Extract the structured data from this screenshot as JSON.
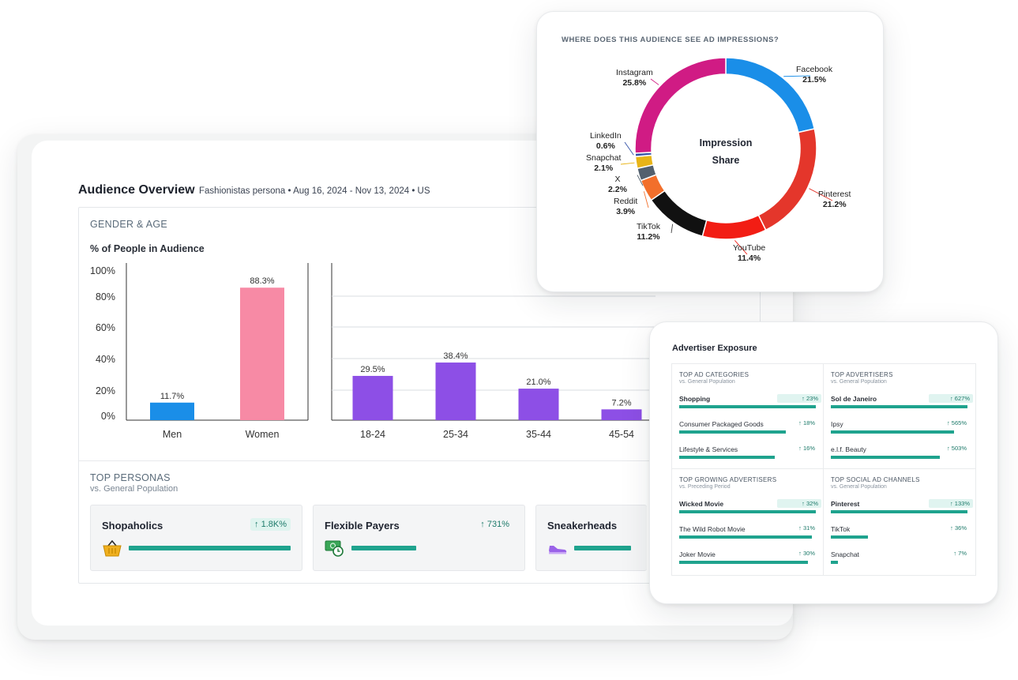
{
  "overview": {
    "title": "Audience Overview",
    "subtitle": "Fashionistas persona • Aug 16, 2024 - Nov 13, 2024 • US",
    "gender_age_title": "GENDER & AGE",
    "chart_label": "% of People in Audience"
  },
  "chart_data": [
    {
      "type": "bar",
      "title": "% of People in Audience",
      "categories": [
        "Men",
        "Women"
      ],
      "values": [
        11.7,
        88.3
      ],
      "value_labels": [
        "11.7%",
        "88.3%"
      ],
      "colors": [
        "#1a8ee8",
        "#f78aa5"
      ],
      "ylim": [
        0,
        100
      ],
      "yticks": [
        "100%",
        "80%",
        "60%",
        "40%",
        "20%",
        "0%"
      ],
      "grid": true
    },
    {
      "type": "bar",
      "categories": [
        "18-24",
        "25-34",
        "35-44",
        "45-54"
      ],
      "values": [
        29.5,
        38.4,
        21.0,
        7.2
      ],
      "value_labels": [
        "29.5%",
        "38.4%",
        "21.0%",
        "7.2%"
      ],
      "colors": [
        "#8d4fe6"
      ],
      "ylim": [
        0,
        100
      ],
      "grid": true
    },
    {
      "type": "pie",
      "title": "WHERE DOES THIS AUDIENCE SEE AD IMPRESSIONS?",
      "center_label": [
        "Impression",
        "Share"
      ],
      "slices": [
        {
          "name": "Facebook",
          "value": 21.5,
          "label": "21.5%",
          "color": "#1a8ee8"
        },
        {
          "name": "Pinterest",
          "value": 21.2,
          "label": "21.2%",
          "color": "#e4362b"
        },
        {
          "name": "YouTube",
          "value": 11.4,
          "label": "11.4%",
          "color": "#f21d14"
        },
        {
          "name": "TikTok",
          "value": 11.2,
          "label": "11.2%",
          "color": "#111111"
        },
        {
          "name": "Reddit",
          "value": 3.9,
          "label": "3.9%",
          "color": "#f26f2b"
        },
        {
          "name": "X",
          "value": 2.2,
          "label": "2.2%",
          "color": "#52606e"
        },
        {
          "name": "Snapchat",
          "value": 2.1,
          "label": "2.1%",
          "color": "#e8b417"
        },
        {
          "name": "LinkedIn",
          "value": 0.6,
          "label": "0.6%",
          "color": "#3553a8"
        },
        {
          "name": "Instagram",
          "value": 25.8,
          "label": "25.8%",
          "color": "#d01b84"
        }
      ]
    }
  ],
  "personas": {
    "title": "TOP PERSONAS",
    "subtitle": "vs. General Population",
    "items": [
      {
        "name": "Shopaholics",
        "lift": "1.8K%",
        "arrow": "↑",
        "level": 1.0,
        "icon": "shopping-basket-icon"
      },
      {
        "name": "Flexible Payers",
        "lift": "731%",
        "arrow": "↑",
        "level": 0.4,
        "icon": "money-clock-icon"
      },
      {
        "name": "Sneakerheads",
        "lift": "",
        "arrow": "",
        "level": 0.35,
        "icon": "sneaker-icon"
      }
    ]
  },
  "advertiser": {
    "title": "Advertiser Exposure",
    "sections": [
      {
        "title": "TOP AD CATEGORIES",
        "subtitle": "vs. General Population",
        "items": [
          {
            "name": "Shopping",
            "lift": "↑ 23%",
            "level": 1.0
          },
          {
            "name": "Consumer Packaged Goods",
            "lift": "↑ 18%",
            "level": 0.78
          },
          {
            "name": "Lifestyle & Services",
            "lift": "↑ 16%",
            "level": 0.7
          }
        ]
      },
      {
        "title": "TOP ADVERTISERS",
        "subtitle": "vs. General Population",
        "items": [
          {
            "name": "Sol de Janeiro",
            "lift": "↑ 627%",
            "level": 1.0
          },
          {
            "name": "Ipsy",
            "lift": "↑ 565%",
            "level": 0.9
          },
          {
            "name": "e.l.f. Beauty",
            "lift": "↑ 503%",
            "level": 0.8
          }
        ]
      },
      {
        "title": "TOP GROWING ADVERTISERS",
        "subtitle": "vs. Preceding Period",
        "items": [
          {
            "name": "Wicked Movie",
            "lift": "↑ 32%",
            "level": 1.0
          },
          {
            "name": "The Wild Robot Movie",
            "lift": "↑ 31%",
            "level": 0.97
          },
          {
            "name": "Joker Movie",
            "lift": "↑ 30%",
            "level": 0.94
          }
        ]
      },
      {
        "title": "TOP SOCIAL AD CHANNELS",
        "subtitle": "vs. General Population",
        "items": [
          {
            "name": "Pinterest",
            "lift": "↑ 133%",
            "level": 1.0
          },
          {
            "name": "TikTok",
            "lift": "↑ 36%",
            "level": 0.27
          },
          {
            "name": "Snapchat",
            "lift": "↑ 7%",
            "level": 0.05
          }
        ]
      }
    ]
  },
  "colors": {
    "accent_bar": "#1fa38e",
    "lift_text": "#1d7a6a"
  }
}
